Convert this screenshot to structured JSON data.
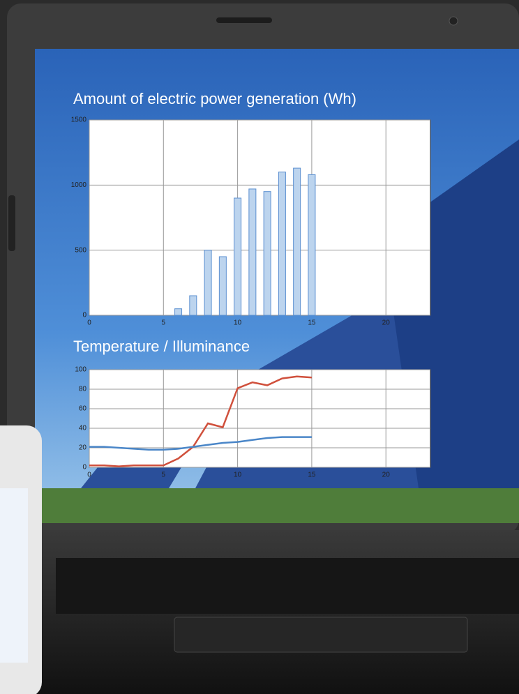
{
  "chart_data": [
    {
      "type": "bar",
      "title": "Amount of electric power generation (Wh)",
      "x": [
        6,
        7,
        8,
        9,
        10,
        11,
        12,
        13,
        14,
        15
      ],
      "values": [
        50,
        150,
        500,
        450,
        900,
        970,
        950,
        1100,
        1130,
        1080
      ],
      "color": "#bcd4ee",
      "xlim": [
        0,
        23
      ],
      "xticks": [
        0,
        5,
        10,
        15,
        20
      ],
      "ylim": [
        0,
        1500
      ],
      "yticks": [
        0,
        500,
        1000,
        1500
      ],
      "grid": true
    },
    {
      "type": "line",
      "title": "Temperature / Illuminance",
      "x": [
        0,
        1,
        2,
        3,
        4,
        5,
        6,
        7,
        8,
        9,
        10,
        11,
        12,
        13,
        14,
        15
      ],
      "series": [
        {
          "color": "#d0503c",
          "values": [
            2,
            2,
            1,
            2,
            2,
            2,
            9,
            21,
            45,
            41,
            81,
            87,
            84,
            91,
            93,
            92
          ]
        },
        {
          "color": "#4a86c8",
          "values": [
            21,
            21,
            20,
            19,
            18,
            18,
            19,
            21,
            23,
            25,
            26,
            28,
            30,
            31,
            31,
            31
          ]
        }
      ],
      "xlim": [
        0,
        23
      ],
      "xticks": [
        0,
        5,
        10,
        15,
        20
      ],
      "ylim": [
        0,
        100
      ],
      "yticks": [
        0,
        20,
        40,
        60,
        80,
        100
      ],
      "grid": true
    }
  ]
}
